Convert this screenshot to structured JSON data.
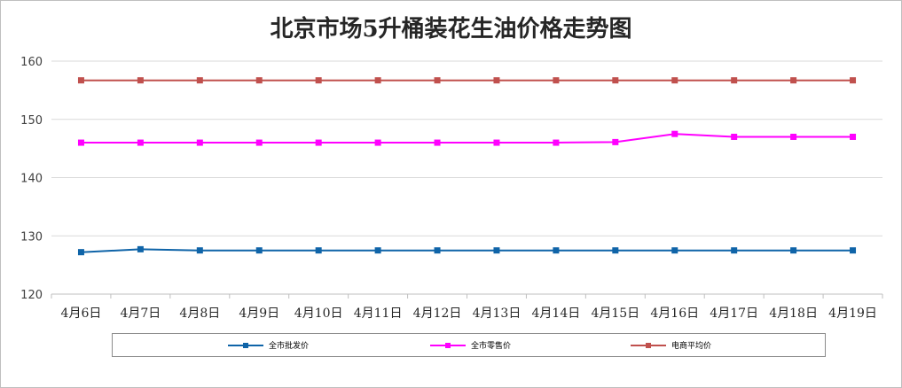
{
  "chart_data": {
    "type": "line",
    "title": "北京市场5升桶装花生油价格走势图",
    "categories": [
      "4月6日",
      "4月7日",
      "4月8日",
      "4月9日",
      "4月10日",
      "4月11日",
      "4月12日",
      "4月13日",
      "4月14日",
      "4月15日",
      "4月16日",
      "4月17日",
      "4月18日",
      "4月19日"
    ],
    "ylim": [
      120,
      160
    ],
    "yticks": [
      120,
      130,
      140,
      150,
      160
    ],
    "grid": true,
    "legend_position": "bottom",
    "series": [
      {
        "name": "全市批发价",
        "color": "#0f64a8",
        "values": [
          127.2,
          127.7,
          127.5,
          127.5,
          127.5,
          127.5,
          127.5,
          127.5,
          127.5,
          127.5,
          127.5,
          127.5,
          127.5,
          127.5
        ]
      },
      {
        "name": "全市零售价",
        "color": "#ff00ff",
        "values": [
          146,
          146,
          146,
          146,
          146,
          146,
          146,
          146,
          146,
          146.1,
          147.5,
          147,
          147,
          147
        ]
      },
      {
        "name": "电商平均价",
        "color": "#c0504d",
        "values": [
          156.7,
          156.7,
          156.7,
          156.7,
          156.7,
          156.7,
          156.7,
          156.7,
          156.7,
          156.7,
          156.7,
          156.7,
          156.7,
          156.7
        ]
      }
    ]
  }
}
